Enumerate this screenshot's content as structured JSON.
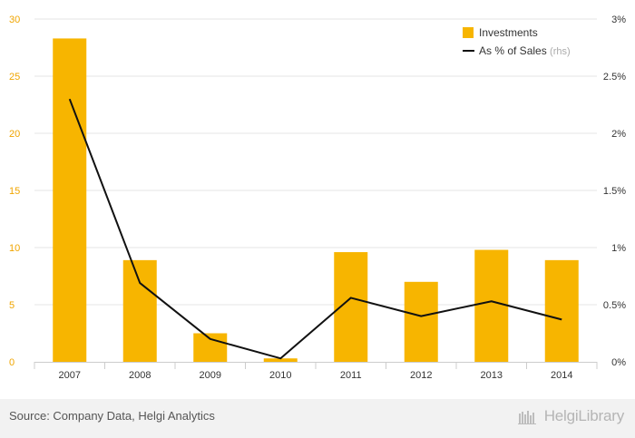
{
  "chart_data": {
    "type": "bar",
    "categories": [
      "2007",
      "2008",
      "2009",
      "2010",
      "2011",
      "2012",
      "2013",
      "2014"
    ],
    "series": [
      {
        "name": "Investments",
        "type": "bar",
        "axis": "left",
        "values": [
          28.3,
          8.9,
          2.5,
          0.3,
          9.6,
          7.0,
          9.8,
          8.9
        ]
      },
      {
        "name": "As % of Sales",
        "type": "line",
        "axis": "right",
        "values": [
          2.3,
          0.69,
          0.2,
          0.03,
          0.56,
          0.4,
          0.53,
          0.37
        ]
      }
    ],
    "y_left": {
      "lim": [
        0,
        30
      ],
      "ticks": [
        "0",
        "5",
        "10",
        "15",
        "20",
        "25",
        "30"
      ]
    },
    "y_right": {
      "lim": [
        0,
        3
      ],
      "ticks": [
        "0%",
        "0.5%",
        "1%",
        "1.5%",
        "2%",
        "2.5%",
        "3%"
      ]
    },
    "legend": {
      "placement": "top-right",
      "rhs_note": "(rhs)"
    },
    "grid": true,
    "colors": {
      "bar": "#f7b500",
      "line": "#111111",
      "left_tick": "#f0a500",
      "right_tick": "#333333",
      "grid": "#e6e6e6"
    }
  },
  "footer": {
    "source": "Source: Company Data, Helgi Analytics",
    "brand": "HelgiLibrary"
  }
}
